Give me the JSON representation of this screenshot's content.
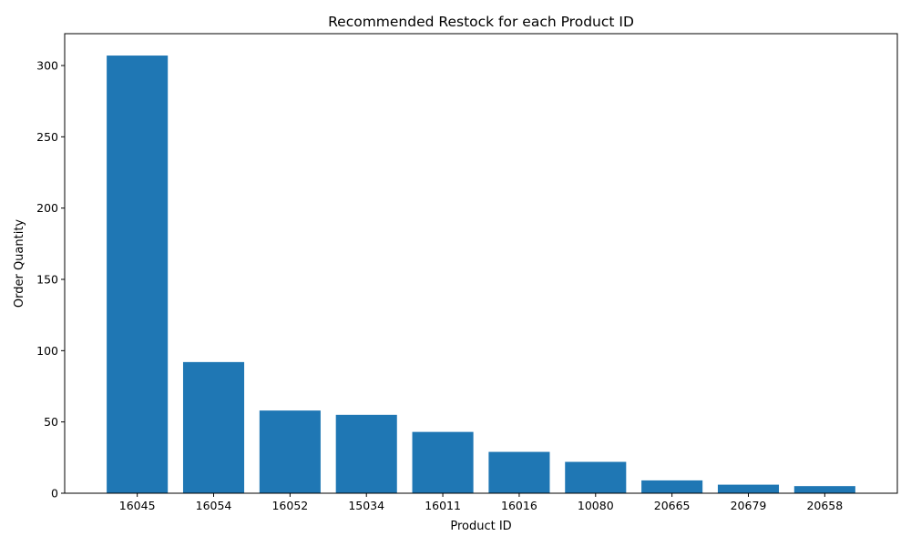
{
  "chart_data": {
    "type": "bar",
    "title": "Recommended Restock for each Product ID",
    "xlabel": "Product ID",
    "ylabel": "Order Quantity",
    "categories": [
      "16045",
      "16054",
      "16052",
      "15034",
      "16011",
      "16016",
      "10080",
      "20665",
      "20679",
      "20658"
    ],
    "values": [
      307,
      92,
      58,
      55,
      43,
      29,
      22,
      9,
      6,
      5
    ],
    "ylim": [
      0,
      322.35
    ],
    "yticks": [
      0,
      50,
      100,
      150,
      200,
      250,
      300
    ],
    "grid": false,
    "legend": "none",
    "bar_color": "#1f77b4"
  }
}
